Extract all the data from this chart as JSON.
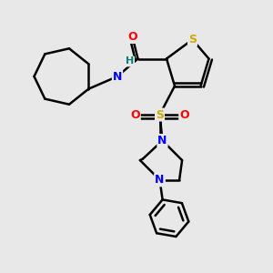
{
  "bg_color": "#e8e8e8",
  "atom_colors": {
    "S_th": "#ccaa00",
    "S_sulf": "#ccaa00",
    "N": "#0000ff",
    "O": "#ff0000",
    "H": "#008080",
    "C": "#000000"
  },
  "bond_color": "#000000",
  "bond_width": 1.8,
  "figsize": [
    3.0,
    3.0
  ],
  "dpi": 100,
  "xlim": [
    0,
    10
  ],
  "ylim": [
    0,
    10
  ]
}
